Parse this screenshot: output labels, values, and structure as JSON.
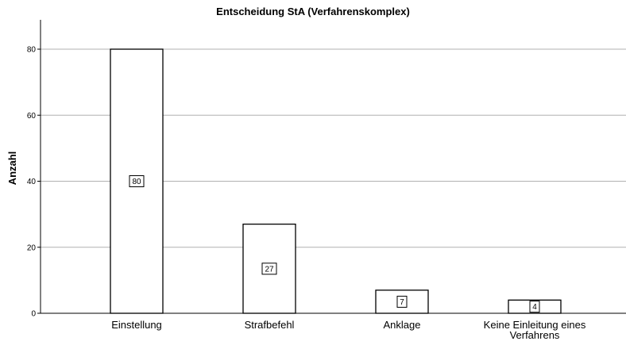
{
  "chart_data": {
    "type": "bar",
    "title": "Entscheidung StA (Verfahrenskomplex)",
    "xlabel": "",
    "ylabel": "Anzahl",
    "categories": [
      "Einstellung",
      "Strafbefehl",
      "Anklage",
      "Keine Einleitung eines Verfahrens"
    ],
    "category_lines": [
      [
        "Einstellung"
      ],
      [
        "Strafbefehl"
      ],
      [
        "Anklage"
      ],
      [
        "Keine Einleitung eines",
        "Verfahrens"
      ]
    ],
    "values": [
      80,
      27,
      7,
      4
    ],
    "ylim": [
      0,
      90
    ],
    "yticks": [
      0,
      20,
      40,
      60,
      80
    ],
    "grid": true,
    "bar_fill": "#ffffff",
    "bar_stroke": "#000000",
    "grid_color": "#b0b0b0"
  }
}
